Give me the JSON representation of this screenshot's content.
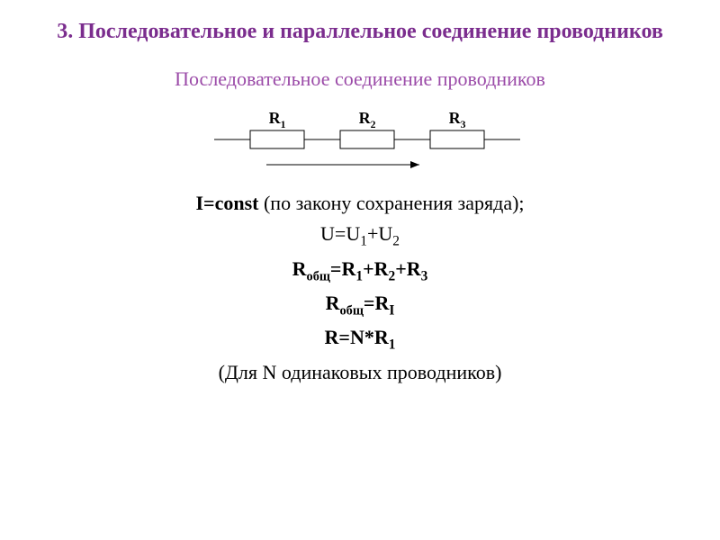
{
  "title": "3. Последовательное и параллельное соединение проводников",
  "subtitle": "Последовательное соединение проводников",
  "diagram": {
    "resistors": [
      {
        "label": "R",
        "sub": "1"
      },
      {
        "label": "R",
        "sub": "2"
      },
      {
        "label": "R",
        "sub": "3"
      }
    ],
    "stroke_color": "#000000",
    "stroke_width": 1,
    "label_fontsize": 18,
    "label_fontweight": "bold",
    "resistor_w": 60,
    "resistor_h": 20,
    "wire_gap": 40,
    "arrow_len": 170
  },
  "formulas": {
    "line1_a": "I=const",
    "line1_b": " (по закону сохранения заряда);",
    "line2": "U=U",
    "line2_s1": "1",
    "line2_mid": "+U",
    "line2_s2": "2",
    "line3_a": "R",
    "line3_sub_a": "общ",
    "line3_b": "=R",
    "line3_s1": "1",
    "line3_c": "+R",
    "line3_s2": "2",
    "line3_d": "+R",
    "line3_s3": "3",
    "line4_a": "R",
    "line4_sub_a": "общ",
    "line4_b": "=R",
    "line4_sub_b": "I",
    "line5_a": "R=N*R",
    "line5_s1": "1",
    "line6": "(Для N одинаковых проводников)"
  },
  "colors": {
    "title": "#7b2d8e",
    "subtitle": "#9b4ba8",
    "text": "#000000",
    "background": "#ffffff"
  },
  "fonts": {
    "title_size": 24,
    "subtitle_size": 22,
    "formula_size": 22,
    "resistor_label_size": 18
  }
}
